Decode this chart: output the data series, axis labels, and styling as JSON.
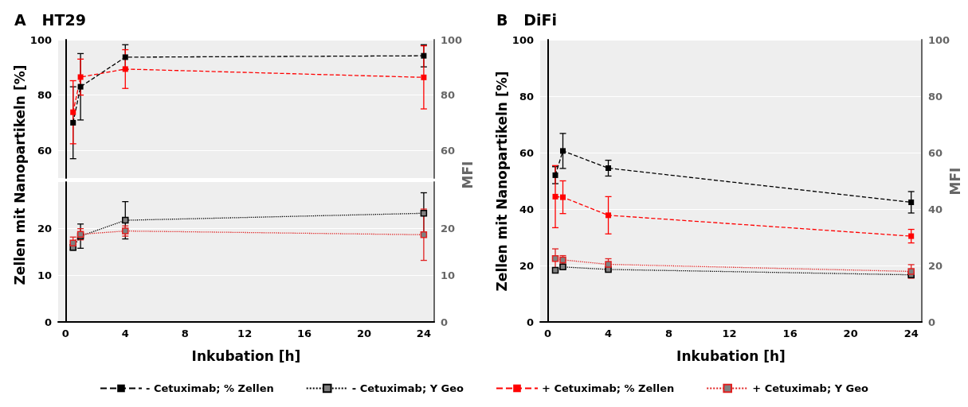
{
  "chart_data": [
    {
      "type": "line",
      "title": "A   HT29",
      "x": [
        0.5,
        1,
        4,
        24
      ],
      "xlim": [
        -0.5,
        24.7
      ],
      "xticks": [
        0,
        4,
        8,
        12,
        16,
        20,
        24
      ],
      "ylim": [
        50,
        100
      ],
      "yticks": [
        60,
        80,
        100
      ],
      "y2lim": [
        50,
        100
      ],
      "y2ticks": [
        60,
        80,
        100
      ],
      "tick_labels": "y",
      "grid": "y",
      "marker": "square",
      "series": [
        {
          "color": "#000000",
          "line_style": "dashed",
          "values": [
            70,
            83,
            93.7,
            94.2
          ],
          "errors": [
            13,
            12,
            4.5,
            4
          ]
        },
        {
          "color": "#ff0000",
          "line_style": "dashed",
          "values": [
            73.8,
            86.5,
            89.4,
            86.4
          ],
          "errors": [
            11.4,
            6.5,
            7,
            11.4
          ]
        }
      ]
    },
    {
      "type": "line",
      "ylabel": "Zellen mit Nanopartikeln [%]",
      "y2label": "MFI",
      "xlabel": "Inkubation [h]",
      "x": [
        0.5,
        1,
        4,
        24
      ],
      "xlim": [
        -0.5,
        24.7
      ],
      "xticks": [
        0,
        4,
        8,
        12,
        16,
        20,
        24
      ],
      "ylim": [
        0,
        30
      ],
      "yticks": [
        0,
        10,
        20
      ],
      "y2lim": [
        0,
        30
      ],
      "y2ticks": [
        0,
        10,
        20
      ],
      "grid": "y",
      "marker": "square",
      "series": [
        {
          "color": "#000000",
          "line_style": "dotted",
          "axis": "y2",
          "values": [
            16,
            18.4,
            21.8,
            23.3
          ],
          "errors": [
            0.6,
            2.6,
            4,
            4.4
          ]
        },
        {
          "color": "#e02020",
          "line_style": "dotted",
          "axis": "y2",
          "values": [
            16.9,
            18.8,
            19.5,
            18.7
          ],
          "errors": [
            1.3,
            1.2,
            1.1,
            5.5
          ]
        }
      ]
    },
    {
      "type": "line",
      "title": "B   DiFi",
      "ylabel": "Zellen mit Nanopartikeln [%]",
      "y2label": "MFI",
      "xlabel": "Inkubation [h]",
      "x": [
        0.5,
        1,
        4,
        24
      ],
      "xlim": [
        -0.5,
        24.7
      ],
      "xticks": [
        0,
        4,
        8,
        12,
        16,
        20,
        24
      ],
      "ylim": [
        0,
        100
      ],
      "yticks": [
        0,
        20,
        40,
        60,
        80,
        100
      ],
      "y2lim": [
        0,
        100
      ],
      "y2ticks": [
        0,
        20,
        40,
        60,
        80,
        100
      ],
      "grid": "y",
      "marker": "square",
      "legend": "bottom",
      "series": [
        {
          "name": "- Cetuximab; % Zellen",
          "color": "#000000",
          "line_style": "dashed",
          "values": [
            52,
            60.6,
            54.5,
            42.4
          ],
          "errors": [
            3,
            6.2,
            2.8,
            3.8
          ]
        },
        {
          "name": "- Cetuximab; Y Geo",
          "color": "#000000",
          "line_style": "dotted",
          "axis": "y2",
          "values": [
            18.3,
            19.5,
            18.6,
            16.7
          ],
          "errors": [
            0.5,
            0.5,
            0.5,
            0.5
          ]
        },
        {
          "name": "+ Cetuximab; % Zellen",
          "color": "#ff0000",
          "line_style": "dashed",
          "values": [
            44.4,
            44.2,
            37.8,
            30.4
          ],
          "errors": [
            11,
            5.8,
            6.6,
            2.4
          ]
        },
        {
          "name": "+ Cetuximab; Y Geo",
          "color": "#e02020",
          "line_style": "dotted",
          "axis": "y2",
          "values": [
            22.5,
            22,
            20.4,
            17.9
          ],
          "errors": [
            3.4,
            1.5,
            2,
            2.4
          ]
        }
      ]
    }
  ]
}
